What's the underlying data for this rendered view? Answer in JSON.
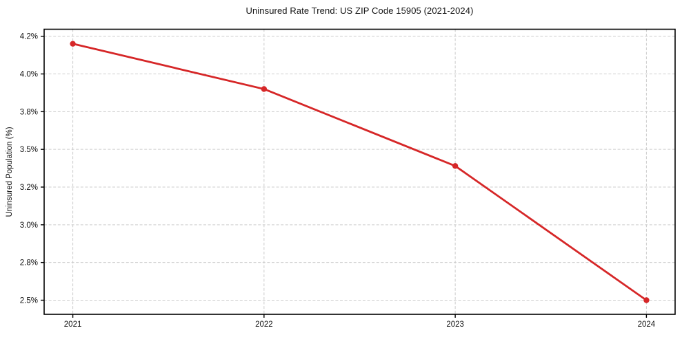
{
  "chart_data": {
    "type": "line",
    "title": "Uninsured Rate Trend: US ZIP Code 15905 (2021-2024)",
    "xlabel": "",
    "ylabel": "Uninsured Population (%)",
    "x": [
      2021,
      2022,
      2023,
      2024
    ],
    "x_tick_labels": [
      "2021",
      "2022",
      "2023",
      "2024"
    ],
    "series": [
      {
        "name": "Uninsured Rate",
        "values": [
          4.2,
          3.9,
          3.39,
          2.5
        ]
      }
    ],
    "y_ticks": [
      {
        "value": 4.25,
        "label": "4.2%"
      },
      {
        "value": 4.0,
        "label": "4.0%"
      },
      {
        "value": 3.75,
        "label": "3.8%"
      },
      {
        "value": 3.5,
        "label": "3.5%"
      },
      {
        "value": 3.25,
        "label": "3.2%"
      },
      {
        "value": 3.0,
        "label": "3.0%"
      },
      {
        "value": 2.75,
        "label": "2.8%"
      },
      {
        "value": 2.5,
        "label": "2.5%"
      }
    ],
    "xlim": [
      2020.85,
      2024.15
    ],
    "ylim": [
      2.4065,
      4.2965
    ],
    "grid": true,
    "grid_style": "dashed",
    "legend": "none",
    "colors": {
      "line": "#d62728",
      "marker": "#d62728",
      "grid": "#cccccc",
      "axis": "#000000",
      "text": "#111111",
      "background": "#ffffff"
    }
  }
}
